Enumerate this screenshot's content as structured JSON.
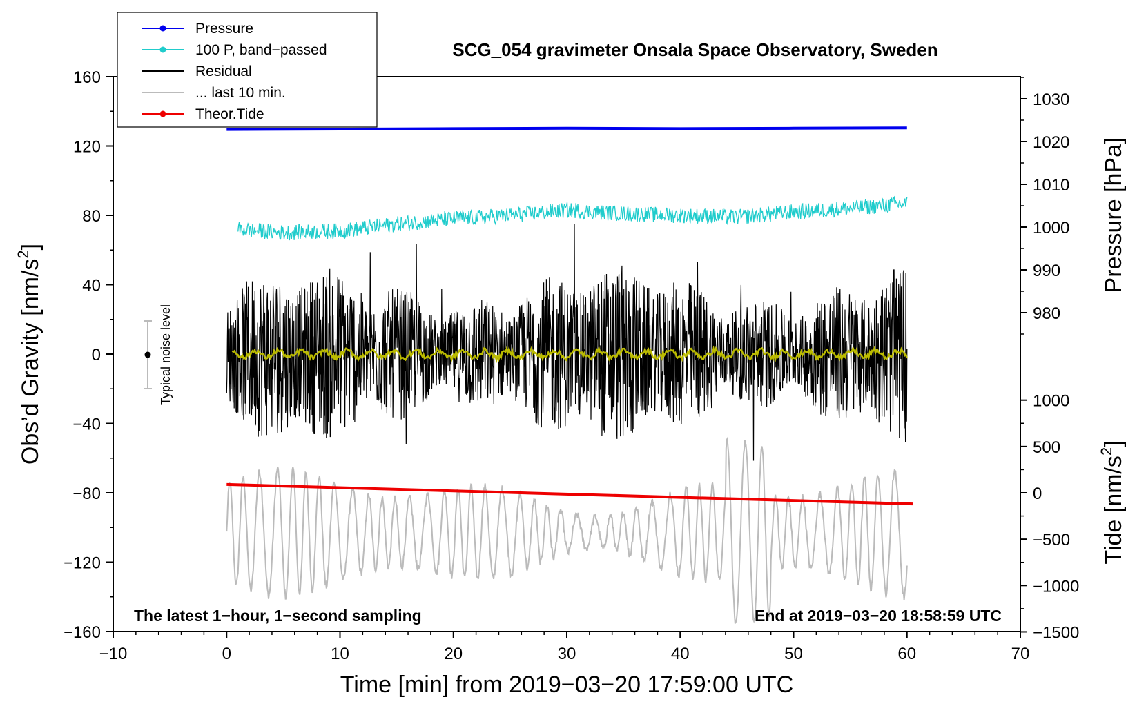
{
  "chart_data": {
    "type": "line",
    "title": "SCG_054 gravimeter Onsala Space Observatory, Sweden",
    "xlabel": "Time [min] from 2019−03−20 17:59:00 UTC",
    "xlim": [
      -10,
      70
    ],
    "xticks": [
      -10,
      0,
      10,
      20,
      30,
      40,
      50,
      60,
      70
    ],
    "xtick_labels": [
      "−10",
      "0",
      "10",
      "20",
      "30",
      "40",
      "50",
      "60",
      "70"
    ],
    "y_left": {
      "label_main": "Obs’d Gravity [nm/s",
      "label_sup": "2",
      "label_end": "]",
      "lim": [
        -160,
        160
      ],
      "ticks": [
        -160,
        -120,
        -80,
        -40,
        0,
        40,
        80,
        120,
        160
      ],
      "tick_labels": [
        "−160",
        "−120",
        "−80",
        "−40",
        "0",
        "40",
        "80",
        "120",
        "160"
      ]
    },
    "y_right_pressure": {
      "label": "Pressure [hPa]",
      "ticks": [
        980,
        990,
        1000,
        1010,
        1020,
        1030
      ],
      "tick_labels": [
        "980",
        "990",
        "1000",
        "1010",
        "1020",
        "1030"
      ]
    },
    "y_right_tide": {
      "label_main": "Tide [nm/s",
      "label_sup": "2",
      "label_end": "]",
      "ticks": [
        -1500,
        -1000,
        -500,
        0,
        500,
        1000
      ],
      "tick_labels": [
        "−1500",
        "−1000",
        "−500",
        "0",
        "500",
        "1000"
      ]
    },
    "legend": {
      "position": "top-left",
      "entries": [
        {
          "name": "Pressure",
          "color": "#0000ee",
          "marker": true
        },
        {
          "name": "100 P, band−passed",
          "color": "#20cccc",
          "marker": true
        },
        {
          "name": "Residual",
          "color": "#000000",
          "marker": false
        },
        {
          "name": "... last 10 min.",
          "color": "#bbbbbb",
          "marker": false
        },
        {
          "name": "Theor.Tide",
          "color": "#ee0000",
          "marker": true
        }
      ]
    },
    "series": [
      {
        "name": "Pressure",
        "color": "#0000ee",
        "x": [
          0,
          10,
          20,
          30,
          40,
          50,
          60
        ],
        "pressure_hPa": [
          1022.8,
          1022.9,
          1023.0,
          1023.1,
          1023.0,
          1023.1,
          1023.2
        ]
      },
      {
        "name": "100 P, band−passed",
        "color": "#20cccc",
        "x": [
          1,
          5,
          10,
          15,
          20,
          25,
          30,
          35,
          40,
          45,
          50,
          55,
          60
        ],
        "y": [
          72,
          70,
          71,
          75,
          78,
          80,
          83,
          81,
          80,
          79,
          82,
          84,
          87
        ]
      },
      {
        "name": "Residual",
        "color": "#000000",
        "x_range": [
          0,
          60
        ],
        "y_envelope": [
          -60,
          70
        ]
      },
      {
        "name": "Smoothed residual",
        "color": "#bbbb00",
        "x_range": [
          0,
          60
        ],
        "y_level": 0
      },
      {
        "name": "... last 10 min.",
        "color": "#bbbbbb",
        "x_range": [
          0,
          60
        ],
        "tide_range": [
          -1500,
          700
        ]
      },
      {
        "name": "Theor.Tide",
        "color": "#ee0000",
        "x": [
          0,
          60.5
        ],
        "tide": [
          90,
          -120
        ]
      }
    ],
    "noise_indicator": {
      "label": "Typical noise level",
      "x": -7,
      "y": 0,
      "range": [
        -20,
        20
      ]
    },
    "annotations": {
      "bottom_left": "The latest 1−hour, 1−second sampling",
      "bottom_right": "End at 2019−03−20 18:58:59 UTC"
    },
    "grid": false
  }
}
